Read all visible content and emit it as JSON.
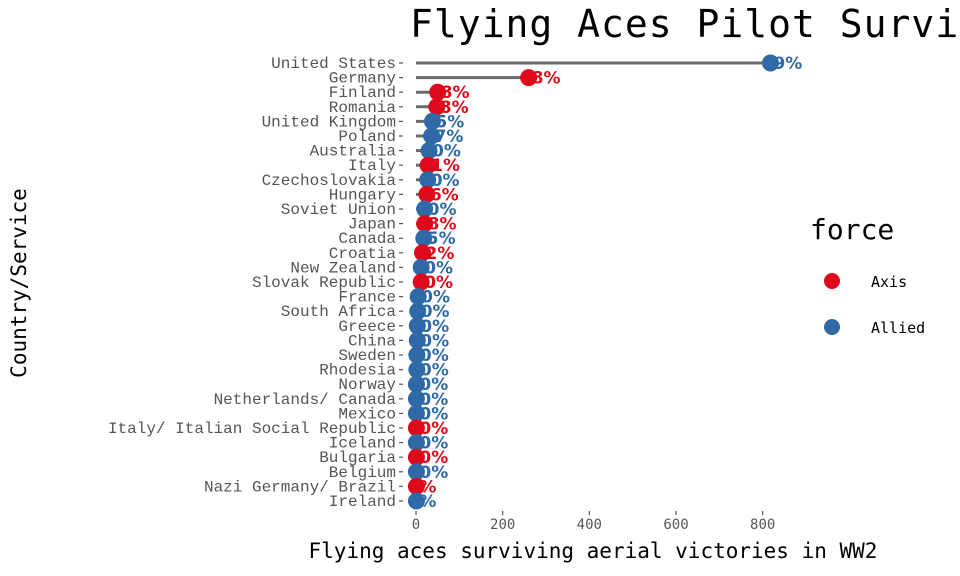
{
  "chart_data": {
    "type": "lollipop",
    "title": "Flying Aces Pilot Surviv",
    "xlabel": "Flying aces surviving aerial victories in WW2",
    "ylabel": "Country/Service",
    "xlim": [
      -30,
      840
    ],
    "xticks": [
      0,
      200,
      400,
      600,
      800
    ],
    "legend": {
      "title": "force",
      "placement": "right",
      "entries": [
        {
          "name": "Axis",
          "color": "#de0a1c"
        },
        {
          "name": "Allied",
          "color": "#2f6aa6"
        }
      ]
    },
    "colors": {
      "stem": "#6b6b6b",
      "Axis": "#de0a1c",
      "Allied": "#2f6aa6"
    },
    "points": [
      {
        "country": "United States",
        "value": 818,
        "force": "Allied",
        "label": "9%"
      },
      {
        "country": "Germany",
        "value": 260,
        "force": "Axis",
        "label": "8%"
      },
      {
        "country": "Finland",
        "value": 50,
        "force": "Axis",
        "label": "8%"
      },
      {
        "country": "Romania",
        "value": 48,
        "force": "Axis",
        "label": "8%"
      },
      {
        "country": "United Kingdom",
        "value": 38,
        "force": "Allied",
        "label": "5%"
      },
      {
        "country": "Poland",
        "value": 36,
        "force": "Allied",
        "label": "7%"
      },
      {
        "country": "Australia",
        "value": 30,
        "force": "Allied",
        "label": "0%"
      },
      {
        "country": "Italy",
        "value": 28,
        "force": "Axis",
        "label": "1%"
      },
      {
        "country": "Czechoslovakia",
        "value": 27,
        "force": "Allied",
        "label": "0%"
      },
      {
        "country": "Hungary",
        "value": 25,
        "force": "Axis",
        "label": "6%"
      },
      {
        "country": "Soviet Union",
        "value": 20,
        "force": "Allied",
        "label": "0%"
      },
      {
        "country": "Japan",
        "value": 20,
        "force": "Axis",
        "label": "8%"
      },
      {
        "country": "Canada",
        "value": 18,
        "force": "Allied",
        "label": "5%"
      },
      {
        "country": "Croatia",
        "value": 15,
        "force": "Axis",
        "label": "2%"
      },
      {
        "country": "New Zealand",
        "value": 12,
        "force": "Allied",
        "label": "0%"
      },
      {
        "country": "Slovak Republic",
        "value": 12,
        "force": "Axis",
        "label": "0%"
      },
      {
        "country": "France",
        "value": 5,
        "force": "Allied",
        "label": "0%"
      },
      {
        "country": "South Africa",
        "value": 4,
        "force": "Allied",
        "label": "0%"
      },
      {
        "country": "Greece",
        "value": 3,
        "force": "Allied",
        "label": "0%"
      },
      {
        "country": "China",
        "value": 3,
        "force": "Allied",
        "label": "0%"
      },
      {
        "country": "Sweden",
        "value": 2,
        "force": "Allied",
        "label": "0%"
      },
      {
        "country": "Rhodesia",
        "value": 2,
        "force": "Allied",
        "label": "0%"
      },
      {
        "country": "Norway",
        "value": 1,
        "force": "Allied",
        "label": "0%"
      },
      {
        "country": "Netherlands/ Canada",
        "value": 1,
        "force": "Allied",
        "label": "0%"
      },
      {
        "country": "Mexico",
        "value": 1,
        "force": "Allied",
        "label": "0%"
      },
      {
        "country": "Italy/ Italian Social Republic",
        "value": 1,
        "force": "Axis",
        "label": "0%"
      },
      {
        "country": "Iceland",
        "value": 1,
        "force": "Allied",
        "label": "0%"
      },
      {
        "country": "Bulgaria",
        "value": 1,
        "force": "Axis",
        "label": "0%"
      },
      {
        "country": "Belgium",
        "value": 1,
        "force": "Allied",
        "label": "0%"
      },
      {
        "country": "Nazi Germany/ Brazil",
        "value": 1,
        "force": "Axis",
        "label": "%"
      },
      {
        "country": "Ireland",
        "value": 1,
        "force": "Allied",
        "label": "%"
      }
    ]
  }
}
